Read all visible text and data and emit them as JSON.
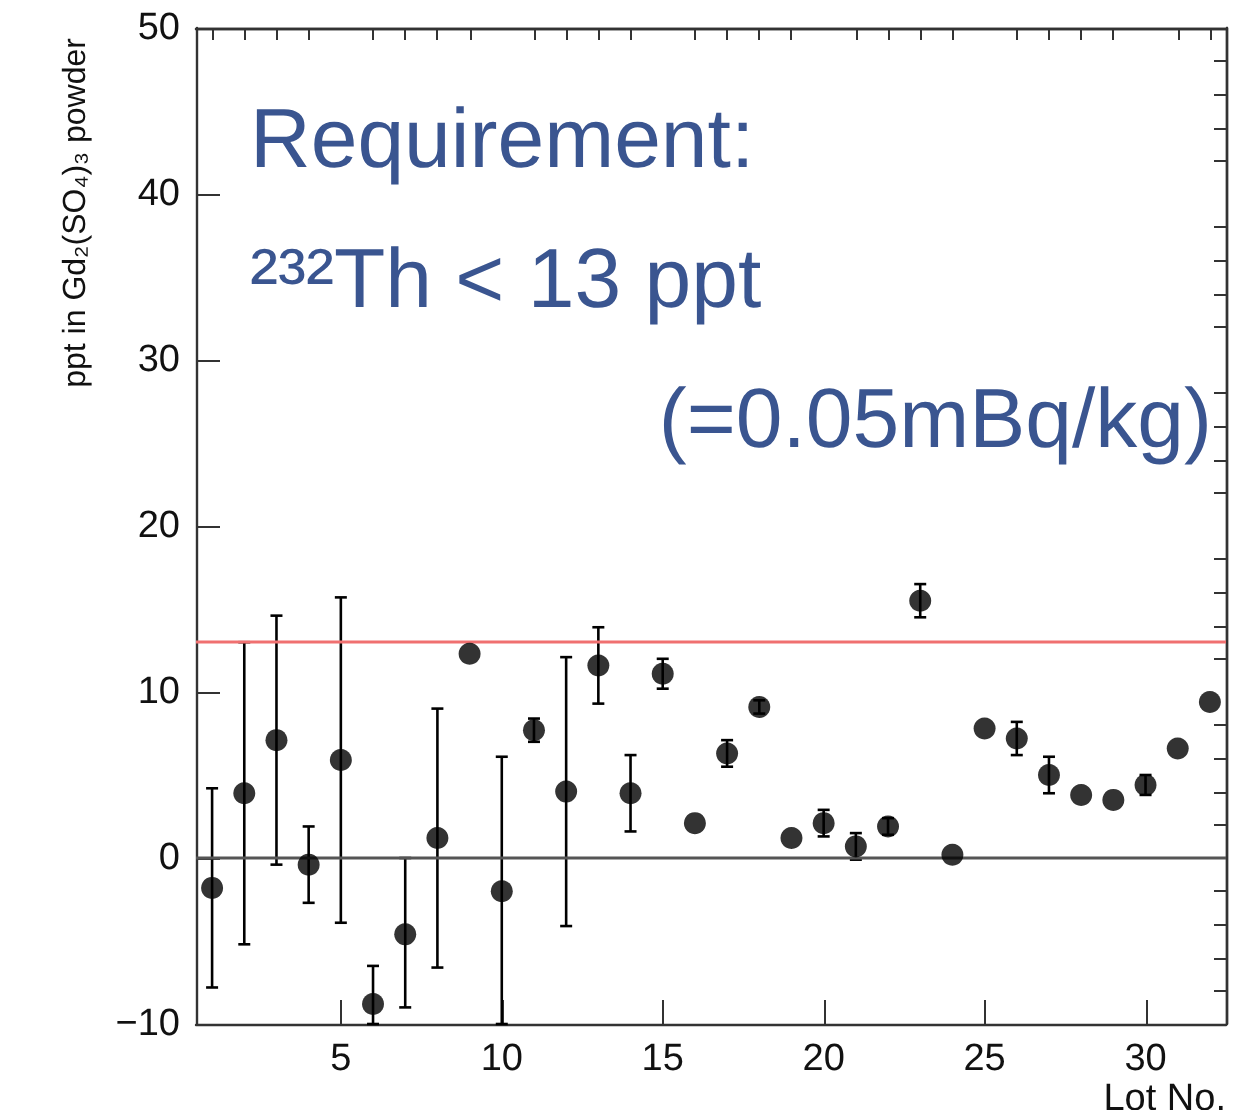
{
  "chart_data": {
    "type": "scatter",
    "x": [
      1,
      2,
      3,
      4,
      5,
      6,
      7,
      8,
      9,
      10,
      11,
      12,
      13,
      14,
      15,
      16,
      17,
      18,
      19,
      20,
      21,
      22,
      23,
      24,
      25,
      26,
      27,
      28,
      29,
      30,
      31,
      32
    ],
    "values": [
      -1.8,
      3.9,
      7.1,
      -0.4,
      5.9,
      -8.8,
      -4.6,
      1.2,
      12.3,
      -2.0,
      7.7,
      4.0,
      11.6,
      3.9,
      11.1,
      2.1,
      6.3,
      9.1,
      1.2,
      2.1,
      0.7,
      1.9,
      15.5,
      0.2,
      7.8,
      7.2,
      5.0,
      3.8,
      3.5,
      4.4,
      6.6,
      9.4
    ],
    "errors": [
      6,
      9.1,
      7.5,
      2.3,
      9.8,
      [
        -10,
        -6.5
      ],
      [
        -9.0,
        0
      ],
      7.8,
      null,
      [
        -10,
        6.1
      ],
      0.7,
      8.1,
      2.3,
      2.3,
      0.9,
      null,
      0.8,
      0.4,
      null,
      0.8,
      0.8,
      0.5,
      1.0,
      null,
      null,
      1.0,
      1.1,
      null,
      null,
      0.6,
      null,
      null
    ],
    "color": "#000000",
    "marker": "circle",
    "xlabel": "Lot No.",
    "ylabel": "ppt in Gd₂(SO₄)₃ powder",
    "xlim": [
      0.5,
      32.5
    ],
    "xticks": [
      5,
      10,
      15,
      20,
      25,
      30
    ],
    "ylim": [
      -10,
      50
    ],
    "yticks": [
      -10,
      0,
      10,
      20,
      30,
      40,
      50
    ],
    "grid": false,
    "ref_lines": [
      {
        "axis": "y",
        "value": 13,
        "color": "#f07070"
      },
      {
        "axis": "y",
        "value": 0,
        "color": "#555555"
      }
    ],
    "annotations": [
      "Requirement:",
      "²³²Th < 13 ppt",
      "(=0.05mBq/kg)"
    ]
  }
}
